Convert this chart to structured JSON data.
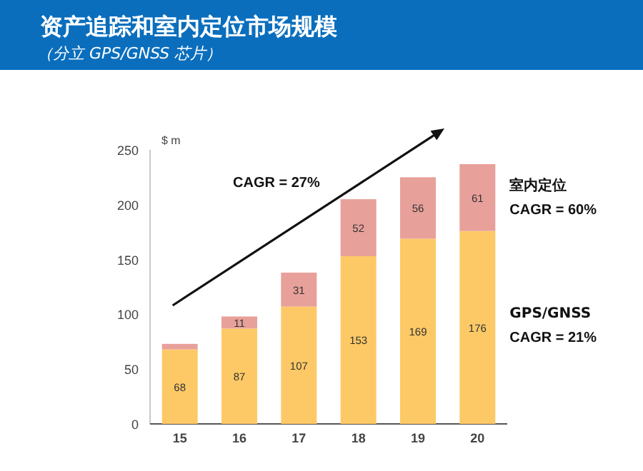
{
  "chart_data": {
    "type": "bar",
    "title": "资产追踪和室内定位市场规模",
    "subtitle": "（分立 GPS/GNSS 芯片）",
    "ylabel": "$ m",
    "categories": [
      "15",
      "16",
      "17",
      "18",
      "19",
      "20"
    ],
    "stacked": true,
    "series": [
      {
        "name": "GPS/GNSS",
        "color": "#fdc966",
        "values": [
          68,
          87,
          107,
          153,
          169,
          176
        ],
        "value_labels": [
          "68",
          "87",
          "107",
          "153",
          "169",
          "176"
        ]
      },
      {
        "name": "室内定位",
        "color": "#e8a09a",
        "values": [
          5,
          11,
          31,
          52,
          56,
          61
        ],
        "value_labels": [
          null,
          "11",
          "31",
          "52",
          "56",
          "61"
        ]
      }
    ],
    "ylim": [
      0,
      250
    ],
    "yticks": [
      0,
      50,
      100,
      150,
      200,
      250
    ],
    "annotations": [
      "CAGR = 27%",
      "CAGR = 60%",
      "CAGR = 21%"
    ],
    "grid": false
  }
}
